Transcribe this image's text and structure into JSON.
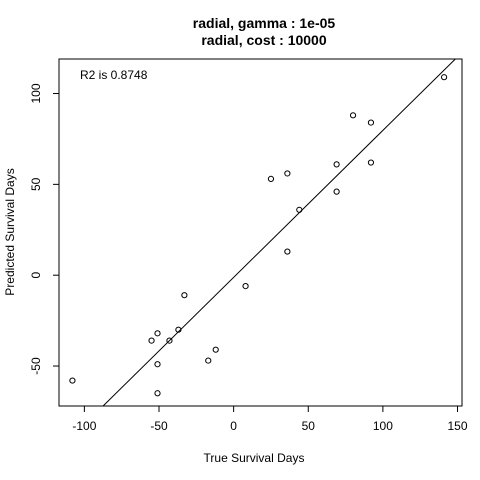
{
  "chart_data": {
    "type": "scatter",
    "title": "radial, gamma : 1e-05",
    "subtitle": "radial, cost : 10000",
    "xlabel": "True Survival Days",
    "ylabel": "Predicted Survival Days",
    "annotation": "R2 is 0.8748",
    "xlim": [
      -117,
      153
    ],
    "ylim": [
      -72,
      119
    ],
    "xticks": [
      -100,
      -50,
      0,
      50,
      100,
      150
    ],
    "xtick_labels": [
      "-100",
      "-50",
      "0",
      "50",
      "100",
      "150"
    ],
    "yticks": [
      -50,
      0,
      50,
      100
    ],
    "ytick_labels": [
      "-50",
      "0",
      "50",
      "100"
    ],
    "grid": false,
    "fit_line": {
      "x": [
        -117,
        153
      ],
      "y": [
        -95.9,
        122.6
      ]
    },
    "points": [
      {
        "x": 141,
        "y": 109
      },
      {
        "x": 80,
        "y": 88
      },
      {
        "x": 92,
        "y": 84
      },
      {
        "x": 92,
        "y": 62
      },
      {
        "x": 69,
        "y": 61
      },
      {
        "x": 36,
        "y": 56
      },
      {
        "x": 25,
        "y": 53
      },
      {
        "x": 69,
        "y": 46
      },
      {
        "x": 44,
        "y": 36
      },
      {
        "x": 36,
        "y": 13
      },
      {
        "x": 8,
        "y": -6
      },
      {
        "x": -33,
        "y": -11
      },
      {
        "x": -37,
        "y": -30
      },
      {
        "x": -51,
        "y": -32
      },
      {
        "x": -43,
        "y": -36
      },
      {
        "x": -55,
        "y": -36
      },
      {
        "x": -12,
        "y": -41
      },
      {
        "x": -17,
        "y": -47
      },
      {
        "x": -51,
        "y": -49
      },
      {
        "x": -108,
        "y": -58
      },
      {
        "x": -51,
        "y": -65
      }
    ]
  }
}
